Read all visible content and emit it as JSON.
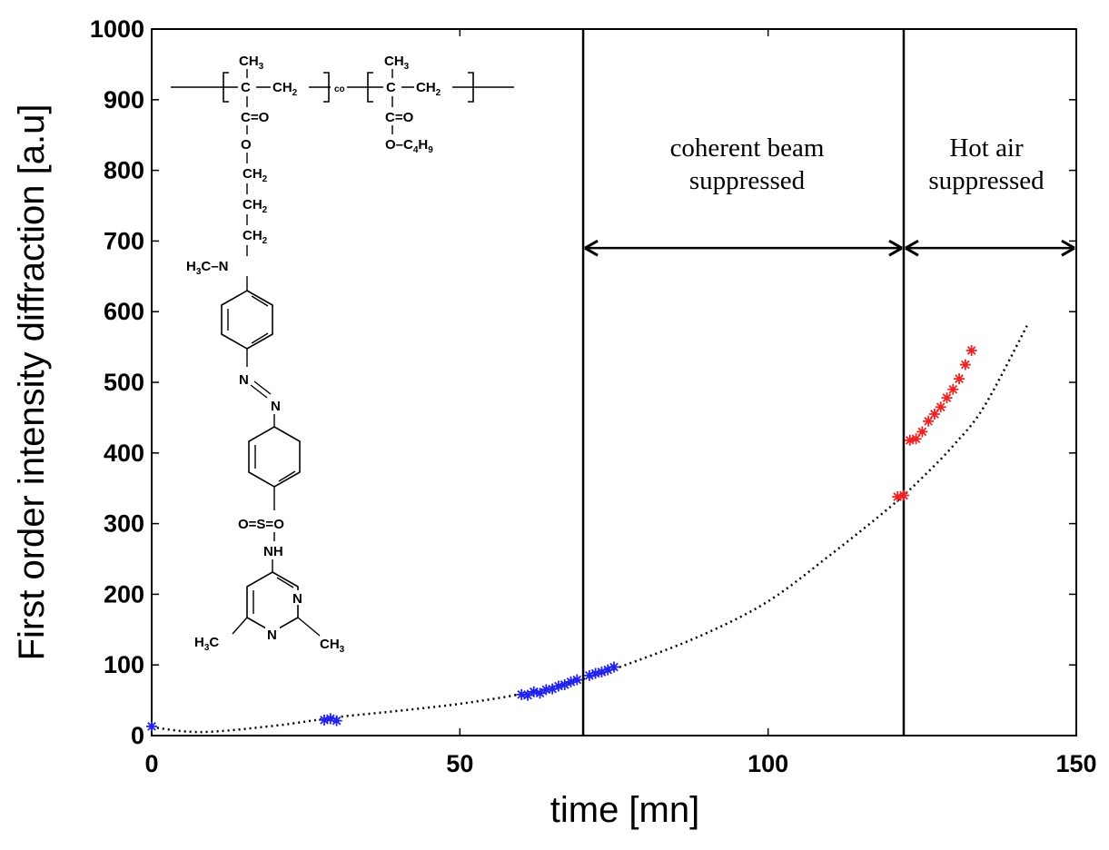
{
  "chart_data": {
    "type": "scatter",
    "title": "",
    "xlabel": "time [mn]",
    "ylabel": "First order intensity diffraction  [a.u]",
    "xlim": [
      0,
      150
    ],
    "ylim": [
      0,
      1000
    ],
    "x_ticks": [
      "0",
      "50",
      "100",
      "150"
    ],
    "y_ticks": [
      "0",
      "100",
      "200",
      "300",
      "400",
      "500",
      "600",
      "700",
      "800",
      "900",
      "1000"
    ],
    "grid": false,
    "series": [
      {
        "color": "#2222ee",
        "marker": "*",
        "points": [
          [
            0,
            13
          ],
          [
            28,
            22
          ],
          [
            29,
            24
          ],
          [
            30,
            21
          ],
          [
            60,
            58
          ],
          [
            61,
            57
          ],
          [
            62,
            62
          ],
          [
            63,
            60
          ],
          [
            64,
            65
          ],
          [
            65,
            66
          ],
          [
            66,
            70
          ],
          [
            67,
            72
          ],
          [
            68,
            76
          ],
          [
            69,
            79
          ],
          [
            71,
            85
          ],
          [
            72,
            88
          ],
          [
            73,
            90
          ],
          [
            74,
            93
          ],
          [
            75,
            97
          ]
        ]
      },
      {
        "color": "#ee2222",
        "marker": "*",
        "points": [
          [
            121,
            338
          ],
          [
            122,
            340
          ],
          [
            123,
            418
          ],
          [
            124,
            420
          ],
          [
            125,
            430
          ],
          [
            126,
            445
          ],
          [
            127,
            455
          ],
          [
            128,
            465
          ],
          [
            129,
            478
          ],
          [
            130,
            490
          ],
          [
            131,
            505
          ],
          [
            132,
            525
          ],
          [
            133,
            545
          ]
        ]
      },
      {
        "color": "#000000",
        "style": "dotted",
        "points": [
          [
            0,
            12
          ],
          [
            8,
            5
          ],
          [
            20,
            14
          ],
          [
            30,
            26
          ],
          [
            40,
            35
          ],
          [
            50,
            45
          ],
          [
            60,
            59
          ],
          [
            70,
            80
          ],
          [
            80,
            110
          ],
          [
            90,
            145
          ],
          [
            100,
            190
          ],
          [
            110,
            255
          ],
          [
            120,
            325
          ],
          [
            125,
            365
          ],
          [
            130,
            410
          ],
          [
            135,
            465
          ],
          [
            142,
            580
          ]
        ]
      }
    ],
    "vlines": [
      70,
      122
    ],
    "annotations": [
      {
        "lines": [
          "coherent beam",
          "suppressed"
        ],
        "x_range": [
          70,
          122
        ]
      },
      {
        "lines": [
          "Hot air",
          "suppressed"
        ],
        "x_range": [
          122,
          150
        ]
      }
    ]
  },
  "structure": {
    "ch3": "CH",
    "ch3_sub": "3",
    "ch2": "CH",
    "ch2_sub": "2",
    "c": "C",
    "co": "co",
    "ceo": "C=O",
    "o": "O",
    "oc4h9": "O–C",
    "c4h9_sub": "4",
    "c4h9_sub2": "H",
    "c4h9_sub3": "9",
    "h3c_n": "H",
    "h3c_sub": "3",
    "h3c_c": "C–N",
    "n1": "N",
    "n2": "N",
    "so2": "O=S=O",
    "nh": "NH",
    "ring_n1": "N",
    "ring_n2": "N",
    "h3c_left": "H",
    "h3c_left_sub": "3",
    "h3c_left_c": "C",
    "ch3_right": "CH",
    "ch3_right_sub": "3"
  }
}
